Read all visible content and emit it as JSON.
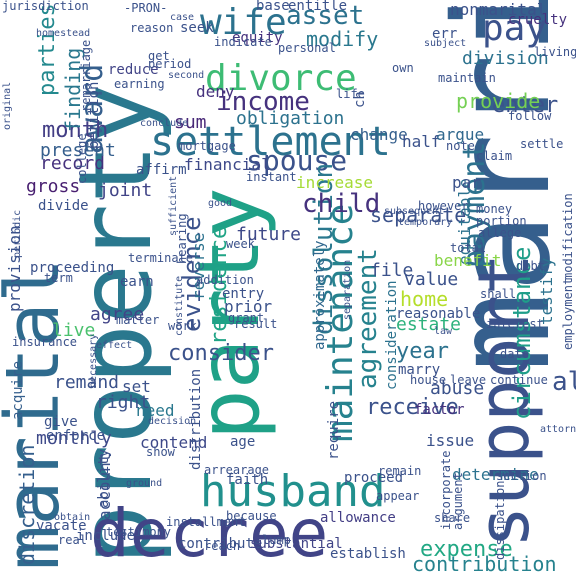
{
  "words": [
    {
      "text": "marriage",
      "color": "#355f8d"
    },
    {
      "text": "property",
      "color": "#2a788e"
    },
    {
      "text": "support",
      "color": "#3b528b"
    },
    {
      "text": "party",
      "color": "#1fa187"
    },
    {
      "text": "marital",
      "color": "#2f6b8e"
    },
    {
      "text": "decree",
      "color": "#414487"
    },
    {
      "text": "husband",
      "color": "#21908d"
    },
    {
      "text": "settlement",
      "color": "#2c728e"
    },
    {
      "text": "divorce",
      "color": "#3dbc74"
    },
    {
      "text": "maintenance",
      "color": "#26828e"
    },
    {
      "text": "spouse",
      "color": "#3b528b"
    },
    {
      "text": "wife",
      "color": "#2c728e"
    },
    {
      "text": "income",
      "color": "#46327e"
    },
    {
      "text": "award",
      "color": "#355f8d"
    },
    {
      "text": "dissolution",
      "color": "#2a788e"
    },
    {
      "text": "payment",
      "color": "#2c728e"
    },
    {
      "text": "agreement",
      "color": "#26828e"
    },
    {
      "text": "alimony",
      "color": "#3b528b"
    },
    {
      "text": "pay",
      "color": "#3b528b"
    },
    {
      "text": "asset",
      "color": "#2c728e"
    },
    {
      "text": "child",
      "color": "#46327e"
    },
    {
      "text": "evidence",
      "color": "#3b528b"
    },
    {
      "text": "circumstance",
      "color": "#1f9e89"
    },
    {
      "text": "expense",
      "color": "#22a884"
    },
    {
      "text": "month",
      "color": "#433e85"
    },
    {
      "text": "consider",
      "color": "#3b528b"
    },
    {
      "text": "receive",
      "color": "#3b528b"
    },
    {
      "text": "discretion",
      "color": "#355f8d"
    },
    {
      "text": "residence",
      "color": "#20a486"
    },
    {
      "text": "modify",
      "color": "#2a788e"
    },
    {
      "text": "enter",
      "color": "#3b528b"
    },
    {
      "text": "provide",
      "color": "#75d054"
    },
    {
      "text": "parties'",
      "color": "#23898e"
    },
    {
      "text": "home",
      "color": "#b5de2b"
    },
    {
      "text": "year",
      "color": "#2c728e"
    },
    {
      "text": "obligation",
      "color": "#2c728e"
    },
    {
      "text": "finding",
      "color": "#2a788e"
    },
    {
      "text": "division",
      "color": "#2c728e"
    },
    {
      "text": "contribution",
      "color": "#26828e"
    },
    {
      "text": "separate",
      "color": "#3b528b"
    },
    {
      "text": "future",
      "color": "#3e4989"
    },
    {
      "text": "sum",
      "color": "#482878"
    },
    {
      "text": "estate",
      "color": "#2db27d"
    },
    {
      "text": "value",
      "color": "#3b528b"
    },
    {
      "text": "record",
      "color": "#46327e"
    },
    {
      "text": "present",
      "color": "#355f8d"
    },
    {
      "text": "gross",
      "color": "#481f70"
    },
    {
      "text": "joint",
      "color": "#414487"
    },
    {
      "text": "monthly",
      "color": "#3e4989"
    },
    {
      "text": "right",
      "color": "#3b528b"
    },
    {
      "text": "remand",
      "color": "#3b528b"
    },
    {
      "text": "agree",
      "color": "#414487"
    },
    {
      "text": "live",
      "color": "#4ac16d"
    },
    {
      "text": "increase",
      "color": "#a5db36"
    },
    {
      "text": "financial",
      "color": "#3e4989"
    },
    {
      "text": "change",
      "color": "#355f8d"
    },
    {
      "text": "half",
      "color": "#3b528b"
    },
    {
      "text": "argue",
      "color": "#31688e"
    },
    {
      "text": "equitable",
      "color": "#2c728e"
    },
    {
      "text": "benefit",
      "color": "#89d548"
    },
    {
      "text": "file",
      "color": "#3b528b"
    },
    {
      "text": "abuse",
      "color": "#3b528b"
    },
    {
      "text": "issue",
      "color": "#3b528b"
    },
    {
      "text": "factor",
      "color": "#46327e"
    },
    {
      "text": "determine",
      "color": "#2c728e"
    },
    {
      "text": "account",
      "color": "#3b528b"
    },
    {
      "text": "contend",
      "color": "#3e4989"
    },
    {
      "text": "need",
      "color": "#2a788e"
    },
    {
      "text": "set",
      "color": "#3b528b"
    },
    {
      "text": "provision",
      "color": "#3b528b"
    },
    {
      "text": "proceeding",
      "color": "#3b528b"
    },
    {
      "text": "acquire",
      "color": "#355f8d"
    },
    {
      "text": "consideration",
      "color": "#2c728e"
    },
    {
      "text": "approximately",
      "color": "#31688e"
    },
    {
      "text": "marry",
      "color": "#3b528b"
    },
    {
      "text": "house",
      "color": "#3b528b"
    },
    {
      "text": "testify",
      "color": "#2c728e"
    },
    {
      "text": "include",
      "color": "#3b528b"
    },
    {
      "text": "contribute",
      "color": "#3b528b"
    },
    {
      "text": "substantial",
      "color": "#414487"
    },
    {
      "text": "establish",
      "color": "#3b528b"
    },
    {
      "text": "proceed",
      "color": "#3b528b"
    },
    {
      "text": "allowance",
      "color": "#433e85"
    },
    {
      "text": "faith",
      "color": "#3b528b"
    },
    {
      "text": "arrearage",
      "color": "#3b528b"
    },
    {
      "text": "require",
      "color": "#3b528b"
    },
    {
      "text": "enforce",
      "color": "#3b528b"
    },
    {
      "text": "give",
      "color": "#3b528b"
    },
    {
      "text": "insurance",
      "color": "#3b528b"
    },
    {
      "text": "vacate",
      "color": "#3b528b"
    },
    {
      "text": "reasonable",
      "color": "#3b528b"
    },
    {
      "text": "reverse",
      "color": "#2c728e"
    },
    {
      "text": "deny",
      "color": "#46327e"
    },
    {
      "text": "equity",
      "color": "#46327e"
    },
    {
      "text": "reduce",
      "color": "#414487"
    },
    {
      "text": "cruelty",
      "color": "#46327e"
    },
    {
      "text": "nonmarital",
      "color": "#3b528b"
    },
    {
      "text": "base",
      "color": "#3b528b"
    },
    {
      "text": "entitle",
      "color": "#3b528b"
    },
    {
      "text": "seek",
      "color": "#3b528b"
    },
    {
      "text": "indicate",
      "color": "#3b528b"
    },
    {
      "text": "personal",
      "color": "#3b528b"
    },
    {
      "text": "own",
      "color": "#3b528b"
    },
    {
      "text": "err",
      "color": "#3b528b"
    },
    {
      "text": "maintain",
      "color": "#3b528b"
    },
    {
      "text": "living",
      "color": "#3b528b"
    },
    {
      "text": "-PRON-",
      "color": "#3b528b"
    },
    {
      "text": "jurisdiction",
      "color": "#3b528b"
    },
    {
      "text": "remarriage",
      "color": "#3b528b"
    },
    {
      "text": "petition",
      "color": "#3b528b"
    },
    {
      "text": "earning",
      "color": "#3b528b"
    },
    {
      "text": "college",
      "color": "#3b528b"
    },
    {
      "text": "mortgage",
      "color": "#3b528b"
    },
    {
      "text": "affirm",
      "color": "#3b528b"
    },
    {
      "text": "instant",
      "color": "#3b528b"
    },
    {
      "text": "divide",
      "color": "#3b528b"
    },
    {
      "text": "term",
      "color": "#3b528b"
    },
    {
      "text": "earn",
      "color": "#3b528b"
    },
    {
      "text": "terminate",
      "color": "#3b528b"
    },
    {
      "text": "hearing",
      "color": "#3b528b"
    },
    {
      "text": "week",
      "color": "#3b528b"
    },
    {
      "text": "addition",
      "color": "#3b528b"
    },
    {
      "text": "entry",
      "color": "#3b528b"
    },
    {
      "text": "prior",
      "color": "#3b528b"
    },
    {
      "text": "grant",
      "color": "#3b528b"
    },
    {
      "text": "result",
      "color": "#3b528b"
    },
    {
      "text": "matter",
      "color": "#3b528b"
    },
    {
      "text": "work",
      "color": "#3b528b"
    },
    {
      "text": "age",
      "color": "#3b528b"
    },
    {
      "text": "distribution",
      "color": "#3b528b"
    },
    {
      "text": "ability",
      "color": "#3b528b"
    },
    {
      "text": "installment",
      "color": "#3b528b"
    },
    {
      "text": "because",
      "color": "#3b528b"
    },
    {
      "text": "testimony",
      "color": "#3b528b"
    },
    {
      "text": "reach",
      "color": "#3b528b"
    },
    {
      "text": "lump",
      "color": "#3b528b"
    },
    {
      "text": "real",
      "color": "#3b528b"
    },
    {
      "text": "show",
      "color": "#3b528b"
    },
    {
      "text": "claim",
      "color": "#3b528b"
    },
    {
      "text": "settle",
      "color": "#3b528b"
    },
    {
      "text": "follow",
      "color": "#3b528b"
    },
    {
      "text": "money",
      "color": "#3b528b"
    },
    {
      "text": "allege",
      "color": "#3b528b"
    },
    {
      "text": "portion",
      "color": "#3b528b"
    },
    {
      "text": "however",
      "color": "#3b528b"
    },
    {
      "text": "total",
      "color": "#3b528b"
    },
    {
      "text": "modification",
      "color": "#3b528b"
    },
    {
      "text": "debt",
      "color": "#3b528b"
    },
    {
      "text": "shall",
      "color": "#3b528b"
    },
    {
      "text": "interest",
      "color": "#3b528b"
    },
    {
      "text": "employment",
      "color": "#3b528b"
    },
    {
      "text": "date",
      "color": "#3b528b"
    },
    {
      "text": "leave",
      "color": "#3b528b"
    },
    {
      "text": "continue",
      "color": "#3b528b"
    },
    {
      "text": "attorney",
      "color": "#3b528b"
    },
    {
      "text": "incorporate",
      "color": "#3b528b"
    },
    {
      "text": "section",
      "color": "#3b528b"
    },
    {
      "text": "argument",
      "color": "#3b528b"
    },
    {
      "text": "dissipation",
      "color": "#3b528b"
    },
    {
      "text": "share",
      "color": "#3b528b"
    },
    {
      "text": "appear",
      "color": "#3b528b"
    },
    {
      "text": "remain",
      "color": "#3b528b"
    },
    {
      "text": "reason",
      "color": "#3b528b"
    },
    {
      "text": "subject",
      "color": "#3b528b"
    },
    {
      "text": "period",
      "color": "#3b528b"
    },
    {
      "text": "second",
      "color": "#3b528b"
    },
    {
      "text": "original",
      "color": "#3b528b"
    },
    {
      "text": "periodic",
      "color": "#3b528b"
    },
    {
      "text": "sufficient",
      "color": "#3b528b"
    },
    {
      "text": "separation",
      "color": "#3b528b"
    },
    {
      "text": "subsequent",
      "color": "#3b528b"
    },
    {
      "text": "temporary",
      "color": "#3b528b"
    },
    {
      "text": "good",
      "color": "#3b528b"
    },
    {
      "text": "effect",
      "color": "#3b528b"
    },
    {
      "text": "necessary",
      "color": "#3b528b"
    },
    {
      "text": "decision",
      "color": "#3b528b"
    },
    {
      "text": "ground",
      "color": "#3b528b"
    },
    {
      "text": "obtain",
      "color": "#3b528b"
    },
    {
      "text": "homestead",
      "color": "#3b528b"
    },
    {
      "text": "life",
      "color": "#3b528b"
    },
    {
      "text": "note",
      "color": "#3b528b"
    },
    {
      "text": "get",
      "color": "#3b528b"
    },
    {
      "text": "case",
      "color": "#3b528b"
    },
    {
      "text": "law",
      "color": "#3b528b"
    },
    {
      "text": "par",
      "color": "#3b528b"
    },
    {
      "text": "ch",
      "color": "#3b528b"
    },
    {
      "text": "constitute",
      "color": "#3b528b"
    },
    {
      "text": "conclude",
      "color": "#3b528b"
    }
  ]
}
